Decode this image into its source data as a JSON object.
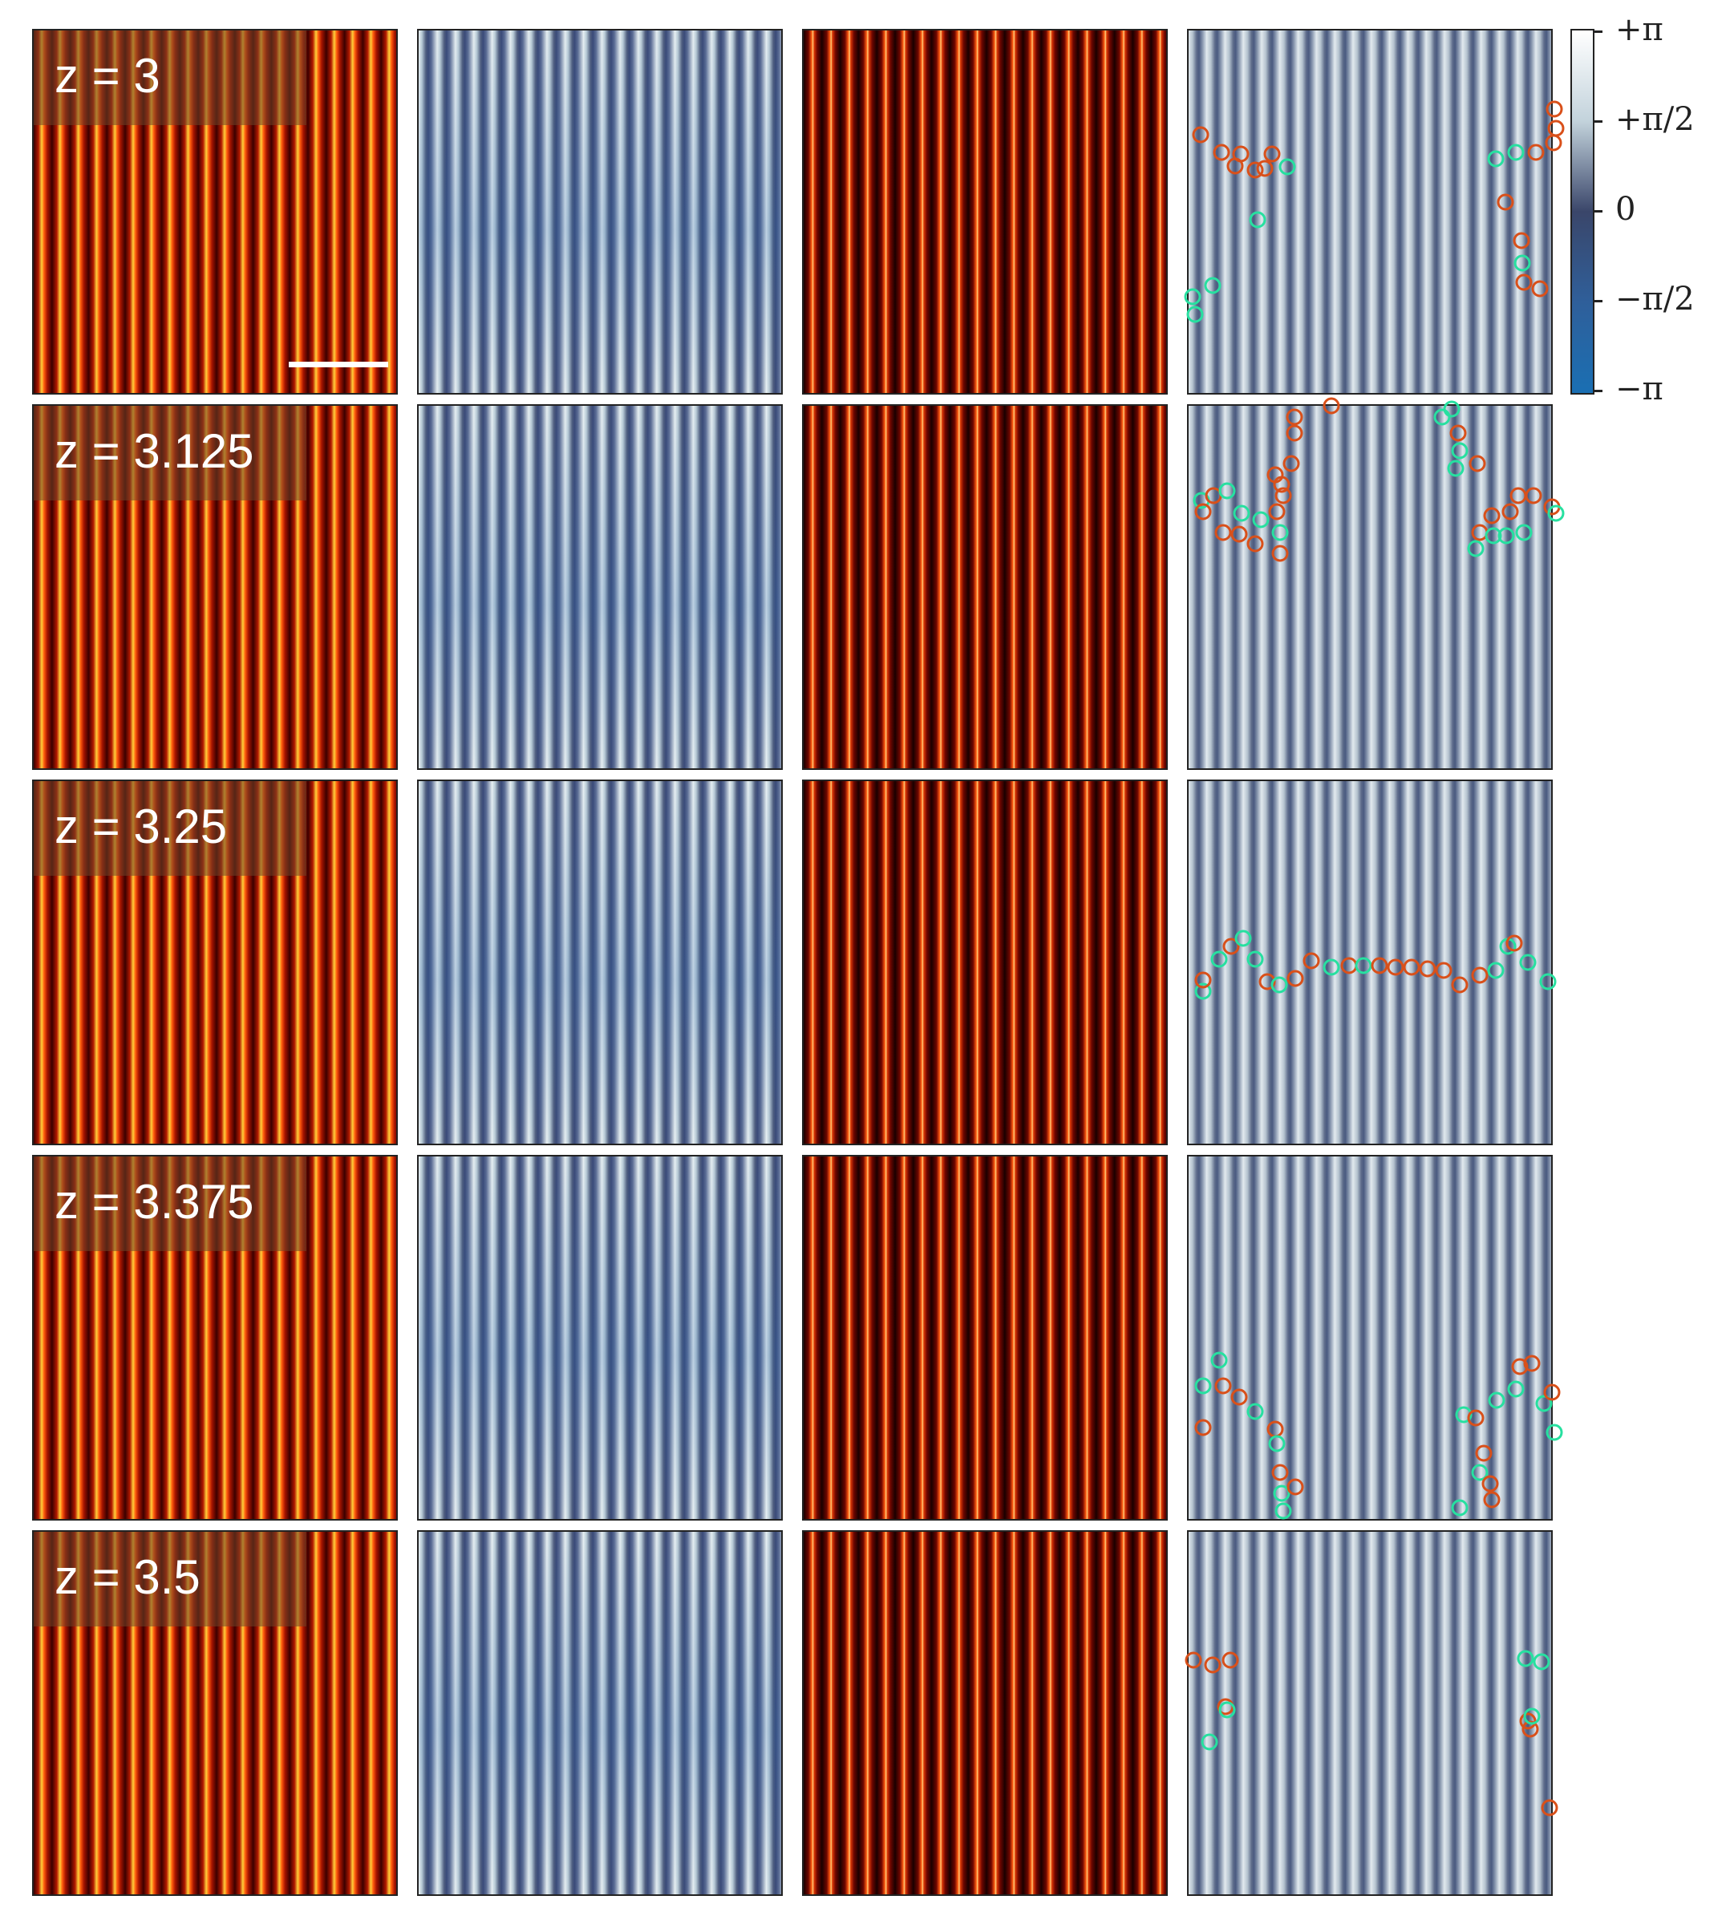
{
  "rows": [
    {
      "label": "z = 3"
    },
    {
      "label": "z = 3.125"
    },
    {
      "label": "z = 3.25"
    },
    {
      "label": "z = 3.375"
    },
    {
      "label": "z = 3.5"
    }
  ],
  "colorbar": {
    "ticks": [
      "+π",
      "+π/2",
      "0",
      "−π/2",
      "−π"
    ]
  },
  "colors": {
    "positive_marker": "#d9501a",
    "negative_marker": "#27e0a0"
  },
  "icons": {
    "positive_marker": "orange-circle-icon",
    "negative_marker": "green-circle-icon"
  }
}
